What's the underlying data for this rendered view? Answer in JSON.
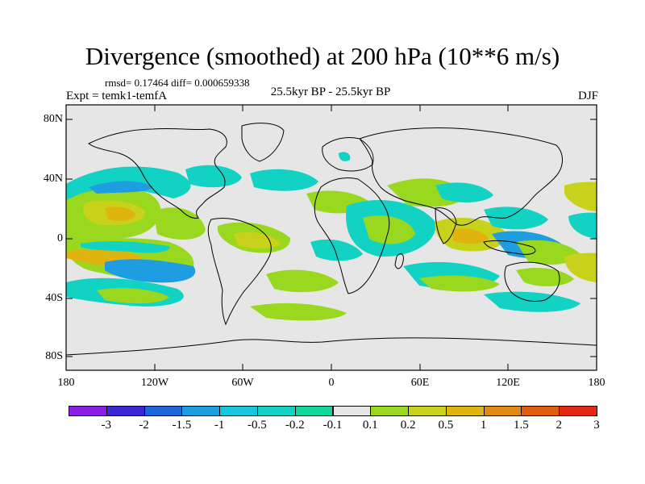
{
  "title": "Divergence (smoothed) at 200 hPa (10**6 m/s)",
  "stats": "rmsd= 0.17464 diff= 0.000659338",
  "experiment": "Expt = temk1-temfA",
  "period": "25.5kyr BP - 25.5kyr BP",
  "season": "DJF",
  "lat_ticks": [
    "80N",
    "40N",
    "0",
    "40S",
    "80S"
  ],
  "lon_ticks": [
    "180",
    "120W",
    "60W",
    "0",
    "60E",
    "120E",
    "180"
  ],
  "colorbar": {
    "labels": [
      "-3",
      "-2",
      "-1.5",
      "-1",
      "-0.5",
      "-0.2",
      "-0.1",
      "0.1",
      "0.2",
      "0.5",
      "1",
      "1.5",
      "2",
      "3"
    ],
    "colors": [
      "#8c1fe6",
      "#3c27d6",
      "#1e66d9",
      "#1e9de0",
      "#19c6e0",
      "#12d2c4",
      "#10d69a",
      "#e6e6e6",
      "#9ad81f",
      "#c8d21a",
      "#e0b40f",
      "#e08a10",
      "#e05c10",
      "#e52812"
    ]
  },
  "colors": {
    "land_outline": "#000000",
    "background": "#e6e6e6"
  }
}
